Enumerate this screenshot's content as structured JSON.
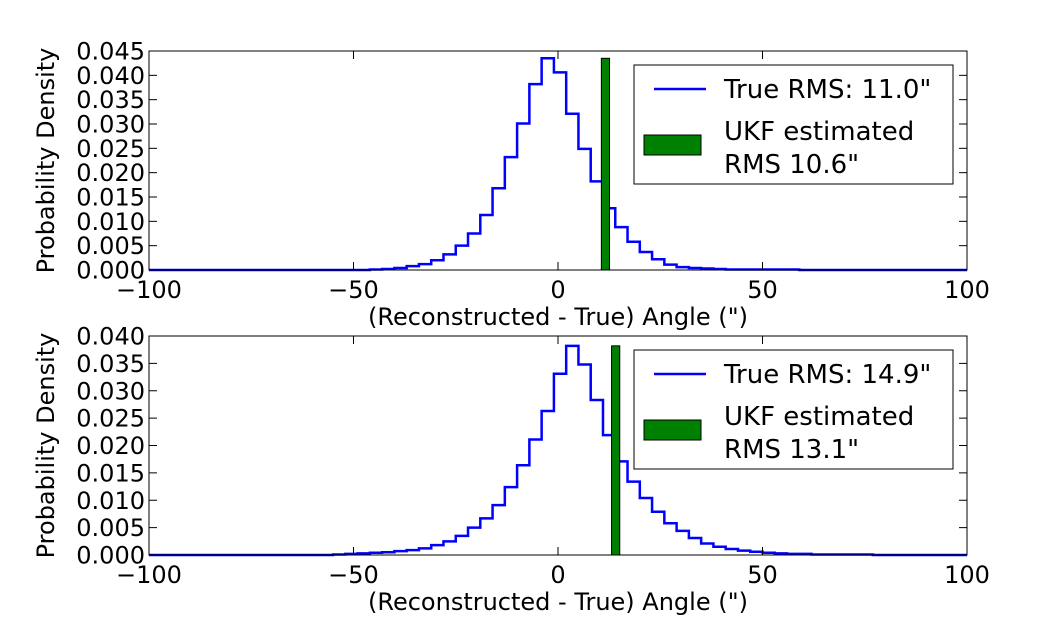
{
  "chart_data": [
    {
      "type": "line",
      "xlabel": "(Reconstructed - True) Angle (\")",
      "ylabel": "Probability Density",
      "xlim": [
        -100,
        100
      ],
      "ylim": [
        0,
        0.045
      ],
      "x_ticks": [
        "−100",
        "−50",
        "0",
        "50",
        "100"
      ],
      "y_ticks": [
        "0.000",
        "0.005",
        "0.010",
        "0.015",
        "0.020",
        "0.025",
        "0.030",
        "0.035",
        "0.040",
        "0.045"
      ],
      "grid": false,
      "legend_position": "top-right",
      "histogram": {
        "series_label": "True RMS: 11.0\"",
        "color": "#0000ff",
        "bin_edges": [
          -100,
          -97,
          -94,
          -91,
          -88,
          -85,
          -82,
          -79,
          -76,
          -73,
          -70,
          -67,
          -64,
          -61,
          -58,
          -55,
          -52,
          -49,
          -46,
          -43,
          -40,
          -37,
          -34,
          -31,
          -28,
          -25,
          -22,
          -19,
          -16,
          -13,
          -10,
          -7,
          -4,
          -1,
          2,
          5,
          8,
          11,
          14,
          17,
          20,
          23,
          26,
          29,
          32,
          35,
          38,
          41,
          44,
          47,
          50,
          53,
          56,
          59,
          62,
          65,
          68,
          71,
          74,
          77,
          80,
          83,
          86,
          89,
          92,
          95,
          98,
          100
        ],
        "values": [
          0,
          0,
          0,
          0,
          0,
          0,
          0,
          0,
          0,
          0,
          0,
          0,
          0,
          0,
          0,
          0,
          0,
          0,
          0.0001,
          0.0002,
          0.0004,
          0.0008,
          0.0012,
          0.002,
          0.0032,
          0.005,
          0.0075,
          0.0113,
          0.0168,
          0.0232,
          0.0301,
          0.0382,
          0.0435,
          0.0406,
          0.0321,
          0.0249,
          0.0182,
          0.0127,
          0.0088,
          0.0058,
          0.0037,
          0.0022,
          0.0011,
          0.0006,
          0.0004,
          0.0003,
          0.0002,
          0.0001,
          0.0001,
          0.0001,
          0.0001,
          0.0001,
          0.0001,
          0,
          0,
          0,
          0,
          0,
          0,
          0,
          0,
          0,
          0,
          0,
          0,
          0,
          0
        ]
      },
      "estimate_bar": {
        "label_line1": "UKF estimated",
        "label_line2": "RMS 10.6\"",
        "color": "#008000",
        "x_start": 10.6,
        "width": 2,
        "height": 0.0435
      }
    },
    {
      "type": "line",
      "xlabel": "(Reconstructed - True) Angle (\")",
      "ylabel": "Probability Density",
      "xlim": [
        -100,
        100
      ],
      "ylim": [
        0,
        0.04
      ],
      "x_ticks": [
        "−100",
        "−50",
        "0",
        "50",
        "100"
      ],
      "y_ticks": [
        "0.000",
        "0.005",
        "0.010",
        "0.015",
        "0.020",
        "0.025",
        "0.030",
        "0.035",
        "0.040"
      ],
      "grid": false,
      "legend_position": "top-right",
      "histogram": {
        "series_label": "True RMS: 14.9\"",
        "color": "#0000ff",
        "bin_edges": [
          -100,
          -97,
          -94,
          -91,
          -88,
          -85,
          -82,
          -79,
          -76,
          -73,
          -70,
          -67,
          -64,
          -61,
          -58,
          -55,
          -52,
          -49,
          -46,
          -43,
          -40,
          -37,
          -34,
          -31,
          -28,
          -25,
          -22,
          -19,
          -16,
          -13,
          -10,
          -7,
          -4,
          -1,
          2,
          5,
          8,
          11,
          14,
          17,
          20,
          23,
          26,
          29,
          32,
          35,
          38,
          41,
          44,
          47,
          50,
          53,
          56,
          59,
          62,
          65,
          68,
          71,
          74,
          77,
          80,
          83,
          86,
          89,
          92,
          95,
          98,
          100
        ],
        "values": [
          0,
          0,
          0,
          0,
          0,
          0,
          0,
          0,
          0,
          0,
          0,
          0,
          0,
          0,
          0,
          0.0001,
          0.0002,
          0.0003,
          0.0004,
          0.0005,
          0.0007,
          0.0009,
          0.0012,
          0.0018,
          0.0025,
          0.0035,
          0.005,
          0.0067,
          0.0091,
          0.0124,
          0.0164,
          0.0211,
          0.0263,
          0.0331,
          0.0382,
          0.0348,
          0.0283,
          0.0219,
          0.0171,
          0.0134,
          0.0104,
          0.0079,
          0.0058,
          0.0044,
          0.0031,
          0.0021,
          0.0015,
          0.0011,
          0.0008,
          0.0006,
          0.0004,
          0.0003,
          0.0002,
          0.0002,
          0.0001,
          0.0001,
          0.0001,
          0.0001,
          0.0001,
          0,
          0,
          0,
          0,
          0,
          0,
          0,
          0
        ]
      },
      "estimate_bar": {
        "label_line1": "UKF estimated",
        "label_line2": "RMS 13.1\"",
        "color": "#008000",
        "x_start": 13.1,
        "width": 2,
        "height": 0.0382
      }
    }
  ]
}
